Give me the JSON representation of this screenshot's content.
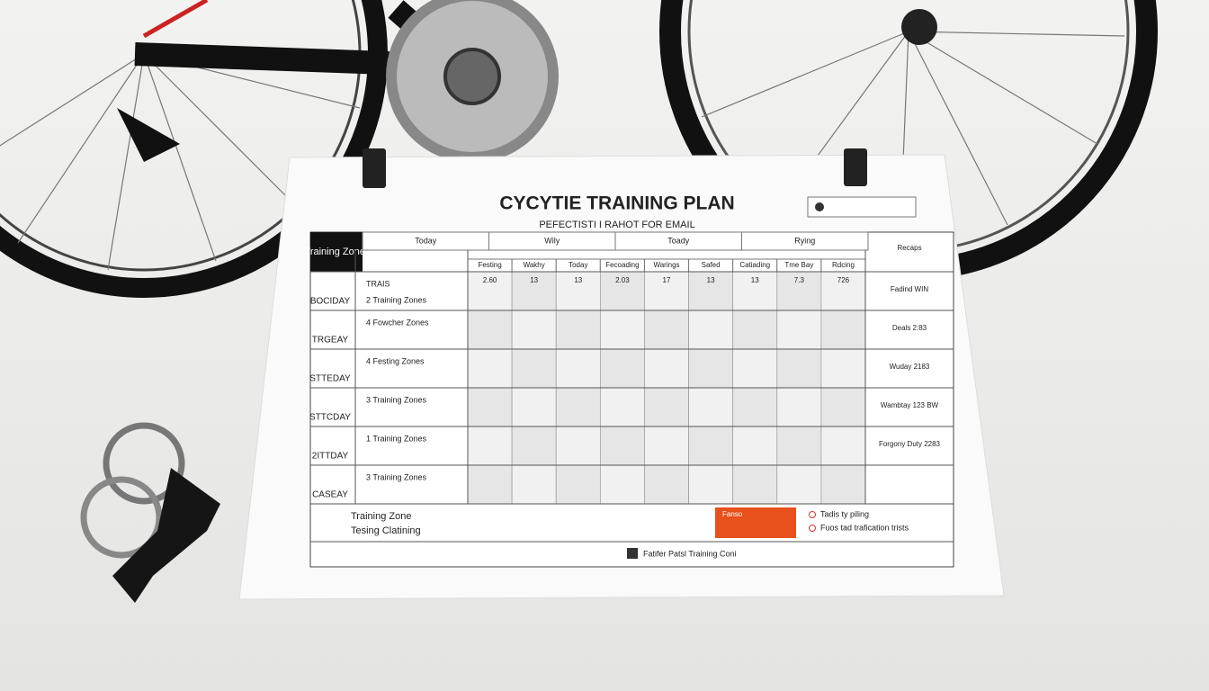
{
  "title": "CYCYTIE TRAINING PLAN",
  "subtitle": "PEFECTISTI I RAHOT FOR EMAIL",
  "table": {
    "corner": "Training Zones",
    "group_headers": [
      "Today",
      "Wily",
      "Toady",
      "Rying"
    ],
    "column_headers": [
      "Festing",
      "Wakhy",
      "Today",
      "Fecoading",
      "Warings",
      "Safed",
      "Catiading",
      "Tme Bay",
      "Rdcing"
    ],
    "numbers": [
      "2.60",
      "13",
      "13",
      "2.03",
      "17",
      "13",
      "13",
      "7.3",
      "726"
    ],
    "right_header": "Recaps",
    "rows": [
      {
        "day": "BOCIDAY",
        "items": [
          "TRAIS",
          "2 Training Zones"
        ]
      },
      {
        "day": "TRGEAY",
        "items": [
          "4 Fowcher Zones"
        ]
      },
      {
        "day": "STTEDAY",
        "items": [
          "4 Festing Zones"
        ]
      },
      {
        "day": "STTCDAY",
        "items": [
          "3 Training Zones"
        ]
      },
      {
        "day": "2ITTDAY",
        "items": [
          "1 Training Zones"
        ]
      },
      {
        "day": "CASEAY",
        "items": [
          "3 Training Zones"
        ]
      }
    ],
    "right_notes": [
      "Fadind WIN",
      "Deals 2:83",
      "Wuday 2183",
      "Wambtay 123 BW",
      "Forgony Duty 2283",
      ""
    ]
  },
  "footer": {
    "zone_lines": [
      "Training Zone",
      "Tesing Clatining"
    ],
    "alert": "Fanso",
    "options": [
      "Tadis ty piling",
      "Fuos tad trafication trists"
    ],
    "brand": "Fatifer Patsl Training Coni"
  }
}
